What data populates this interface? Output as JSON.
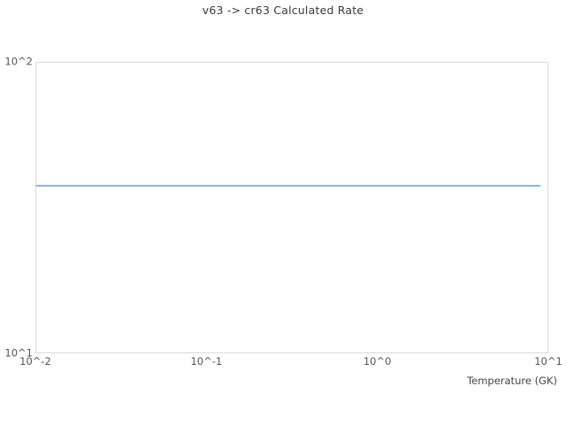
{
  "chart_data": {
    "type": "line",
    "title": "v63 -> cr63 Calculated Rate",
    "xlabel": "Temperature (GK)",
    "ylabel": "",
    "x_scale": "log",
    "y_scale": "log",
    "xlim": [
      0.01,
      10
    ],
    "ylim": [
      10,
      100
    ],
    "x_tick_labels": [
      "10^-2",
      "10^-1",
      "10^0",
      "10^1"
    ],
    "y_tick_labels": [
      "10^1",
      "10^2"
    ],
    "grid": false,
    "legend": "none",
    "series": [
      {
        "name": "calculated rate",
        "color": "#5b9bd5",
        "x": [
          0.01,
          9.1
        ],
        "y": [
          37.6,
          37.6
        ],
        "constant_value": 37.6
      }
    ],
    "colors": {
      "axis_border": "#d9d9d9",
      "title_text": "#3a3a3a",
      "tick_text": "#555555",
      "axis_label_text": "#444444",
      "line": "#5b9bd5",
      "background": "#ffffff"
    }
  }
}
